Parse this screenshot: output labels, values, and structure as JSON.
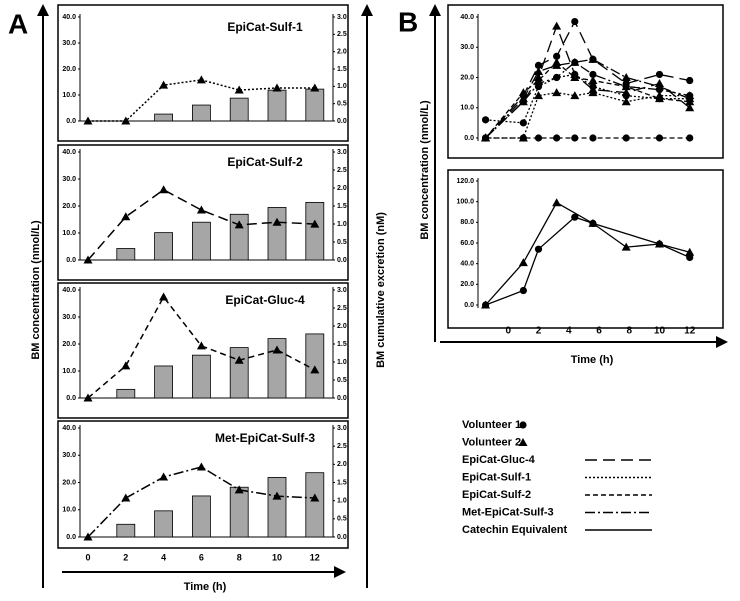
{
  "figure": {
    "panels": [
      {
        "label": "A",
        "ylabel": "BM concentration (nmol/L)",
        "y2label": "BM cumulative excretion (nM)",
        "xlabel": "Time (h)",
        "categories": [
          0,
          2,
          4,
          6,
          8,
          10,
          12
        ]
      },
      {
        "label": "B",
        "ylabel": "BM concentration (nmol/L)",
        "xlabel": "Time (h)",
        "legend": [
          {
            "label": "Volunteer 1",
            "marker": "circle"
          },
          {
            "label": "Volunteer 2",
            "marker": "triangle"
          },
          {
            "label": "EpiCat-Gluc-4",
            "dash": "12,6"
          },
          {
            "label": "EpiCat-Sulf-1",
            "dash": "2,2"
          },
          {
            "label": "EpiCat-Sulf-2",
            "dash": "5,3"
          },
          {
            "label": "Met-EpiCat-Sulf-3",
            "dash": "10,3,2,3"
          },
          {
            "label": "Catechin Equivalent",
            "dash": null
          }
        ]
      }
    ]
  },
  "chart_data": [
    {
      "type": "bar_line",
      "title": "EpiCat-Sulf-1",
      "ylim": [
        0,
        40
      ],
      "yticks": [
        {
          "value": 0,
          "label": "0.0"
        },
        {
          "value": 10,
          "label": "10.0"
        },
        {
          "value": 20,
          "label": "20.0"
        },
        {
          "value": 30,
          "label": "30.0"
        },
        {
          "value": 40,
          "label": "40.0"
        }
      ],
      "y2lim": [
        0,
        3
      ],
      "y2ticks": [
        {
          "value": 0,
          "label": "0.0"
        },
        {
          "value": 0.5,
          "label": "0.5"
        },
        {
          "value": 1,
          "label": "1.0"
        },
        {
          "value": 1.5,
          "label": "1.5"
        },
        {
          "value": 2,
          "label": "2.0"
        },
        {
          "value": 2.5,
          "label": "2.5"
        },
        {
          "value": 3,
          "label": "3.0"
        }
      ],
      "series": [
        {
          "type": "bar",
          "axis": "y2",
          "color": "#a6a6a6",
          "values": [
            null,
            null,
            0.2,
            0.46,
            0.66,
            0.89,
            0.92
          ]
        },
        {
          "type": "line",
          "marker": "triangle",
          "dash": "2,2",
          "color": "#000000",
          "values": [
            0,
            0,
            13.8,
            15.8,
            11.9,
            12.7,
            12.7
          ]
        }
      ]
    },
    {
      "type": "bar_line",
      "title": "EpiCat-Sulf-2",
      "ylim": [
        0,
        40
      ],
      "yticks": [
        {
          "value": 0,
          "label": "0.0"
        },
        {
          "value": 10,
          "label": "10.0"
        },
        {
          "value": 20,
          "label": "20.0"
        },
        {
          "value": 30,
          "label": "30.0"
        },
        {
          "value": 40,
          "label": "40.0"
        }
      ],
      "y2lim": [
        0,
        3
      ],
      "y2ticks": [
        {
          "value": 0,
          "label": "0.0"
        },
        {
          "value": 0.5,
          "label": "0.5"
        },
        {
          "value": 1,
          "label": "1.0"
        },
        {
          "value": 1.5,
          "label": "1.5"
        },
        {
          "value": 2,
          "label": "2.0"
        },
        {
          "value": 2.5,
          "label": "2.5"
        },
        {
          "value": 3,
          "label": "3.0"
        }
      ],
      "series": [
        {
          "type": "bar",
          "axis": "y2",
          "color": "#a6a6a6",
          "values": [
            null,
            0.32,
            0.76,
            1.05,
            1.27,
            1.46,
            1.6
          ]
        },
        {
          "type": "line",
          "marker": "triangle",
          "dash": "10,5",
          "color": "#000000",
          "values": [
            0,
            16,
            26,
            18.5,
            13,
            14,
            13.3
          ]
        }
      ]
    },
    {
      "type": "bar_line",
      "title": "EpiCat-Gluc-4",
      "ylim": [
        0,
        40
      ],
      "yticks": [
        {
          "value": 0,
          "label": "0.0"
        },
        {
          "value": 10,
          "label": "10.0"
        },
        {
          "value": 20,
          "label": "20.0"
        },
        {
          "value": 30,
          "label": "30.0"
        },
        {
          "value": 40,
          "label": "40.0"
        }
      ],
      "y2lim": [
        0,
        3
      ],
      "y2ticks": [
        {
          "value": 0,
          "label": "0.0"
        },
        {
          "value": 0.5,
          "label": "0.5"
        },
        {
          "value": 1,
          "label": "1.0"
        },
        {
          "value": 1.5,
          "label": "1.5"
        },
        {
          "value": 2,
          "label": "2.0"
        },
        {
          "value": 2.5,
          "label": "2.5"
        },
        {
          "value": 3,
          "label": "3.0"
        }
      ],
      "series": [
        {
          "type": "bar",
          "axis": "y2",
          "color": "#a6a6a6",
          "values": [
            null,
            0.24,
            0.89,
            1.19,
            1.4,
            1.65,
            1.78
          ]
        },
        {
          "type": "line",
          "marker": "triangle",
          "dash": "6,4",
          "color": "#000000",
          "values": [
            0,
            11.9,
            37.4,
            19.3,
            14,
            17.8,
            10.4
          ]
        }
      ]
    },
    {
      "type": "bar_line",
      "title": "Met-EpiCat-Sulf-3",
      "ylim": [
        0,
        40
      ],
      "yticks": [
        {
          "value": 0,
          "label": "0.0"
        },
        {
          "value": 10,
          "label": "10.0"
        },
        {
          "value": 20,
          "label": "20.0"
        },
        {
          "value": 30,
          "label": "30.0"
        },
        {
          "value": 40,
          "label": "40.0"
        }
      ],
      "y2lim": [
        0,
        3
      ],
      "y2ticks": [
        {
          "value": 0,
          "label": "0.0"
        },
        {
          "value": 0.5,
          "label": "0.5"
        },
        {
          "value": 1,
          "label": "1.0"
        },
        {
          "value": 1.5,
          "label": "1.5"
        },
        {
          "value": 2,
          "label": "2.0"
        },
        {
          "value": 2.5,
          "label": "2.5"
        },
        {
          "value": 3,
          "label": "3.0"
        }
      ],
      "series": [
        {
          "type": "bar",
          "axis": "y2",
          "color": "#a6a6a6",
          "values": [
            null,
            0.35,
            0.72,
            1.13,
            1.37,
            1.64,
            1.77
          ]
        },
        {
          "type": "line",
          "marker": "triangle",
          "dash": "10,3,2,3",
          "color": "#000000",
          "values": [
            0,
            14.3,
            22,
            25.7,
            17.3,
            15,
            14.3
          ]
        }
      ]
    },
    {
      "type": "line",
      "xlim": [
        -2,
        14.2
      ],
      "x": [
        -1.5,
        1,
        2,
        3.2,
        4.4,
        5.6,
        7.8,
        10,
        12
      ],
      "ylim": [
        0,
        40
      ],
      "yticks": [
        {
          "value": 0,
          "label": "0.0"
        },
        {
          "value": 10,
          "label": "10.0"
        },
        {
          "value": 20,
          "label": "20.0"
        },
        {
          "value": 30,
          "label": "30.0"
        },
        {
          "value": 40,
          "label": "40.0"
        }
      ],
      "series": [
        {
          "marker": "circle",
          "dash": "12,6",
          "color": "#000000",
          "values": [
            0,
            14,
            24,
            27,
            38.5,
            26,
            18,
            21,
            19
          ]
        },
        {
          "marker": "circle",
          "dash": "2,2",
          "color": "#000000",
          "values": [
            6,
            5,
            17,
            20,
            21,
            17,
            14,
            13,
            13
          ]
        },
        {
          "marker": "circle",
          "dash": "5,3",
          "color": "#000000",
          "values": [
            0,
            0,
            0,
            0,
            0,
            0,
            0,
            0,
            0
          ]
        },
        {
          "marker": "circle",
          "dash": "10,3,2,3",
          "color": "#000000",
          "values": [
            0,
            12,
            18,
            20,
            25,
            21,
            17,
            16,
            14
          ]
        },
        {
          "marker": "triangle",
          "dash": "12,6",
          "color": "#000000",
          "values": [
            0,
            12,
            20,
            37,
            21,
            16,
            15,
            18,
            10
          ]
        },
        {
          "marker": "triangle",
          "dash": "2,2",
          "color": "#000000",
          "values": [
            0,
            0,
            14,
            15,
            14,
            15,
            12,
            14,
            14
          ]
        },
        {
          "marker": "triangle",
          "dash": "5,3",
          "color": "#000000",
          "values": [
            0,
            15,
            19,
            25,
            20,
            19,
            17,
            13,
            12
          ]
        },
        {
          "marker": "triangle",
          "dash": "10,3,2,3",
          "color": "#000000",
          "values": [
            0,
            13,
            22,
            24,
            25,
            26,
            20,
            17,
            13
          ]
        }
      ]
    },
    {
      "type": "line",
      "xlim": [
        -2,
        14.2
      ],
      "xticks": [
        0,
        2,
        4,
        6,
        8,
        10,
        12
      ],
      "ylim": [
        0,
        120
      ],
      "yticks": [
        {
          "value": 0,
          "label": "0.0"
        },
        {
          "value": 20,
          "label": "20.0"
        },
        {
          "value": 40,
          "label": "40.0"
        },
        {
          "value": 60,
          "label": "60.0"
        },
        {
          "value": 80,
          "label": "80.0"
        },
        {
          "value": 100,
          "label": "100.0"
        },
        {
          "value": 120,
          "label": "120.0"
        }
      ],
      "series": [
        {
          "marker": "circle",
          "dash": null,
          "color": "#000000",
          "x": [
            -1.5,
            1,
            2,
            4.4,
            5.6,
            10,
            12
          ],
          "values": [
            0,
            14,
            54,
            85,
            79,
            59,
            46
          ]
        },
        {
          "marker": "triangle",
          "dash": null,
          "color": "#000000",
          "x": [
            -1.5,
            1,
            3.2,
            5.6,
            7.8,
            10,
            12
          ],
          "values": [
            0,
            41,
            99,
            79,
            56,
            59,
            51
          ]
        }
      ]
    }
  ]
}
